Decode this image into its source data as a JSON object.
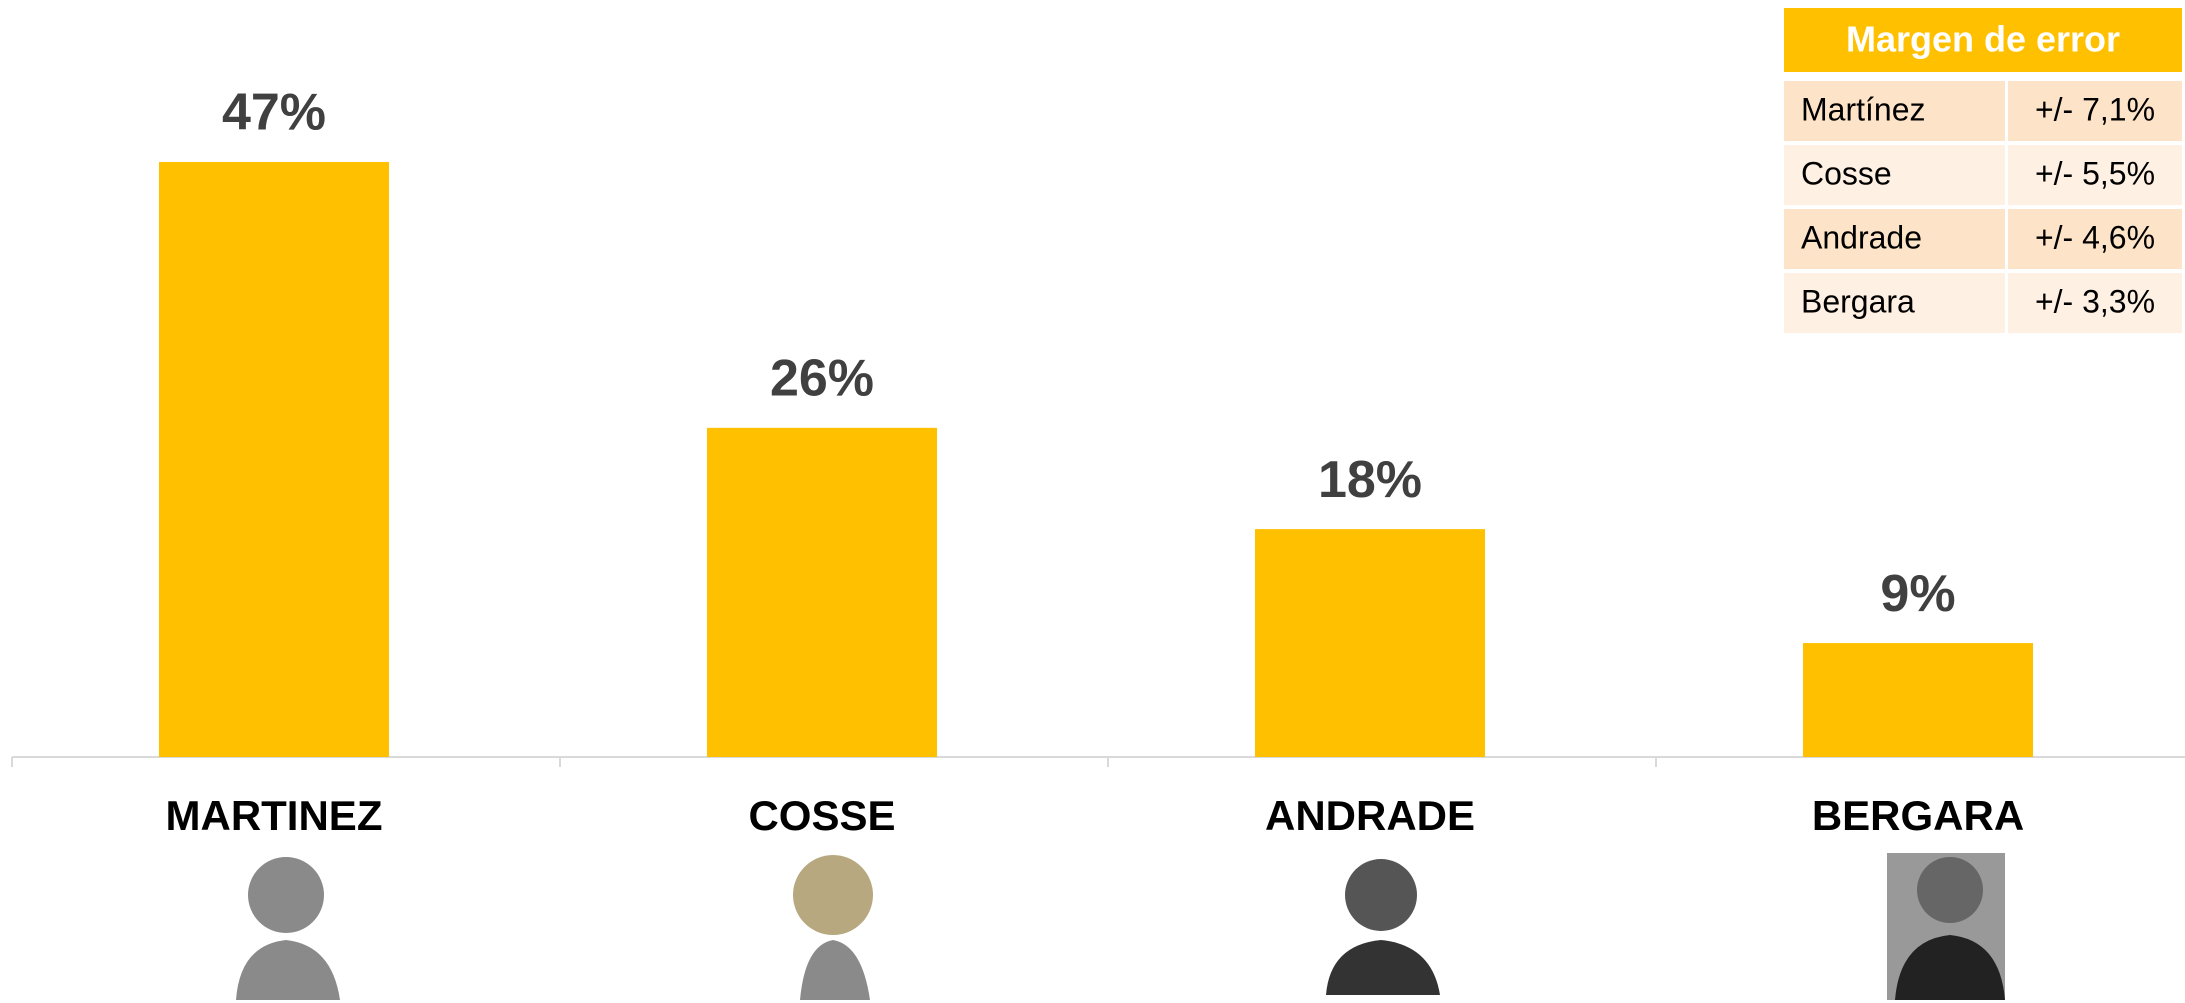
{
  "chart_data": {
    "type": "bar",
    "categories": [
      "MARTINEZ",
      "COSSE",
      "ANDRADE",
      "BERGARA"
    ],
    "values": [
      47,
      26,
      18,
      9
    ],
    "value_labels": [
      "47%",
      "26%",
      "18%",
      "9%"
    ],
    "color": "#ffc000"
  },
  "table": {
    "title": "Margen de error",
    "rows": [
      [
        "Martínez",
        "+/- 7,1%"
      ],
      [
        "Cosse",
        "+/- 5,5%"
      ],
      [
        "Andrade",
        "+/- 4,6%"
      ],
      [
        "Bergara",
        "+/- 3,3%"
      ]
    ]
  }
}
